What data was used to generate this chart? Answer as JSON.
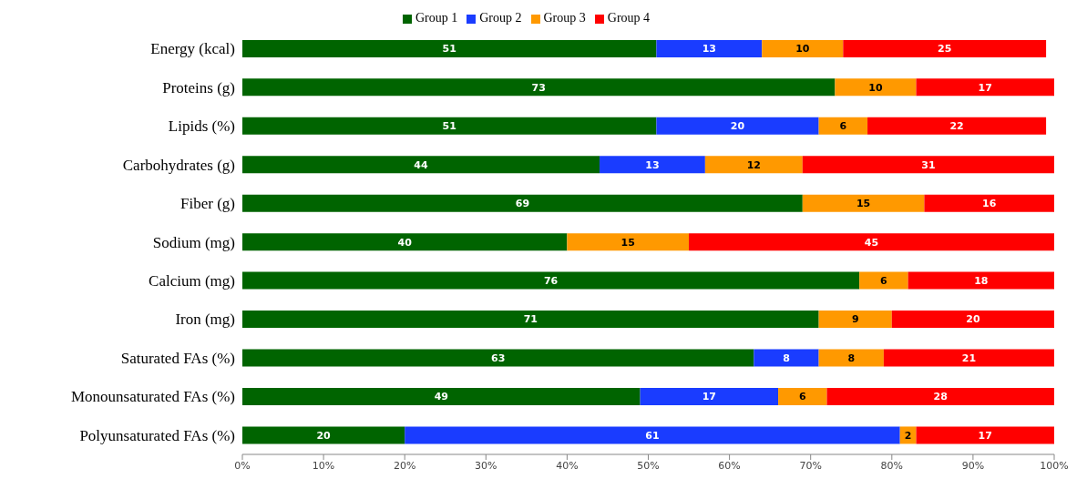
{
  "chart_data": {
    "type": "bar",
    "orientation": "horizontal",
    "stacked": true,
    "categories": [
      "Energy (kcal)",
      "Proteins (g)",
      "Lipids (%)",
      "Carbohydrates (g)",
      "Fiber (g)",
      "Sodium (mg)",
      "Calcium (mg)",
      "Iron (mg)",
      "Saturated FAs (%)",
      "Monounsaturated FAs (%)",
      "Polyunsaturated FAs (%)"
    ],
    "series": [
      {
        "name": "Group 1",
        "color": "#006400",
        "values": [
          51,
          73,
          51,
          44,
          69,
          40,
          76,
          71,
          63,
          49,
          20
        ]
      },
      {
        "name": "Group 2",
        "color": "#1a3cff",
        "values": [
          13,
          null,
          20,
          13,
          null,
          null,
          null,
          null,
          8,
          17,
          61
        ]
      },
      {
        "name": "Group 3",
        "color": "#ff9900",
        "values": [
          10,
          10,
          6,
          12,
          15,
          15,
          6,
          9,
          8,
          6,
          2
        ]
      },
      {
        "name": "Group 4",
        "color": "#ff0000",
        "values": [
          25,
          17,
          22,
          31,
          16,
          45,
          18,
          20,
          21,
          28,
          17
        ]
      }
    ],
    "xlim": [
      0,
      100
    ],
    "xticks": [
      {
        "value": 0,
        "label": "0%"
      },
      {
        "value": 10,
        "label": "10%"
      },
      {
        "value": 20,
        "label": "20%"
      },
      {
        "value": 30,
        "label": "30%"
      },
      {
        "value": 40,
        "label": "40%"
      },
      {
        "value": 50,
        "label": "50%"
      },
      {
        "value": 60,
        "label": "60%"
      },
      {
        "value": 70,
        "label": "70%"
      },
      {
        "value": 80,
        "label": "80%"
      },
      {
        "value": 90,
        "label": "90%"
      },
      {
        "value": 100,
        "label": "100%"
      }
    ],
    "data_labels": true,
    "legend": "top",
    "grid": false
  }
}
